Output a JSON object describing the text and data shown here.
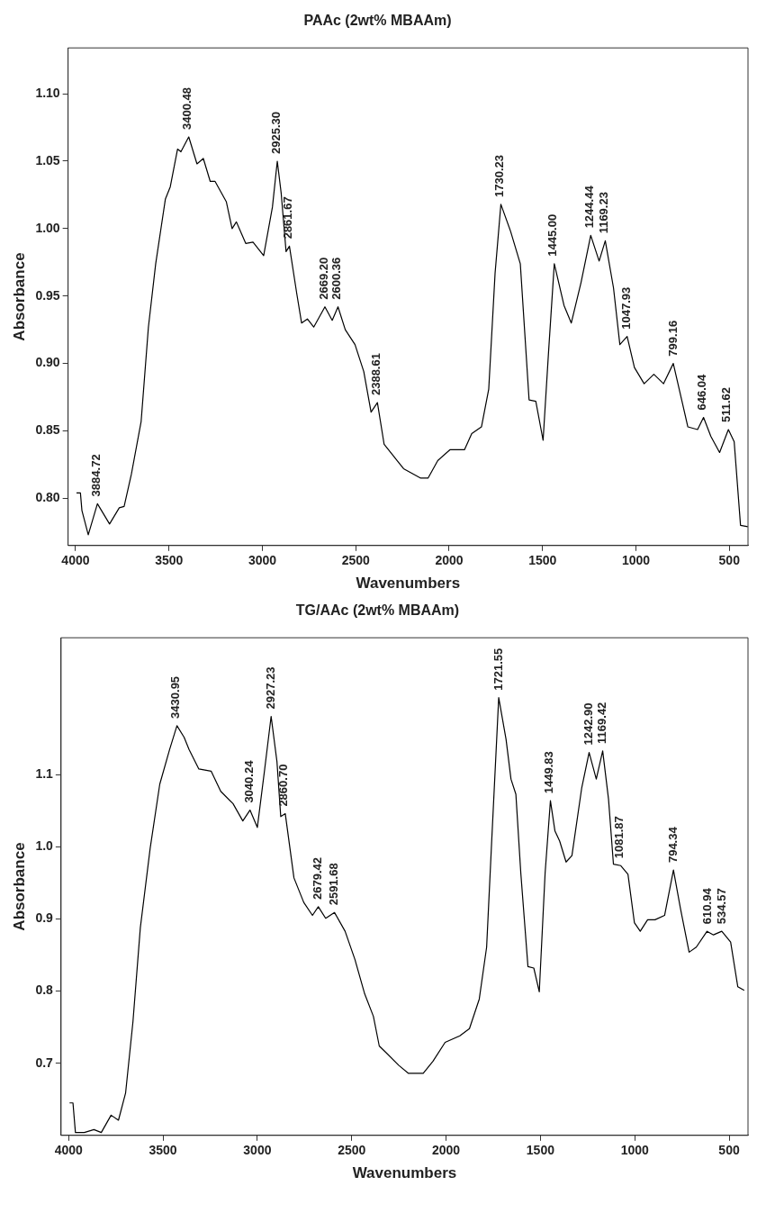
{
  "chart_data": [
    {
      "type": "line",
      "title": "PAAc (2wt% MBAAm)",
      "xlabel": "Wavenumbers",
      "ylabel": "Absorbance",
      "xlim": [
        4040,
        400
      ],
      "xticks": [
        4000,
        3500,
        3000,
        2500,
        2000,
        1500,
        1000,
        500
      ],
      "ylim": [
        0.765,
        1.134
      ],
      "yticks": [
        {
          "value": 0.8,
          "label": "0.80"
        },
        {
          "value": 0.85,
          "label": "0.85"
        },
        {
          "value": 0.9,
          "label": "0.90"
        },
        {
          "value": 0.95,
          "label": "0.95"
        },
        {
          "value": 1.0,
          "label": "1.00"
        },
        {
          "value": 1.05,
          "label": "1.05"
        },
        {
          "value": 1.1,
          "label": "1.10"
        }
      ],
      "grid": false,
      "marker": "none",
      "line_style": "solid",
      "series": [
        {
          "color": "#000000",
          "x": [
            3995,
            3974,
            3966,
            3932,
            3883,
            3818,
            3766,
            3740,
            3701,
            3649,
            3610,
            3571,
            3519,
            3493,
            3454,
            3436,
            3394,
            3350,
            3316,
            3279,
            3253,
            3193,
            3162,
            3139,
            3089,
            3050,
            2993,
            2946,
            2920,
            2899,
            2873,
            2855,
            2816,
            2790,
            2759,
            2725,
            2665,
            2626,
            2595,
            2556,
            2504,
            2457,
            2418,
            2384,
            2348,
            2296,
            2244,
            2152,
            2113,
            2061,
            1996,
            1918,
            1879,
            1827,
            1788,
            1754,
            1723,
            1671,
            1619,
            1572,
            1536,
            1497,
            1468,
            1437,
            1385,
            1346,
            1294,
            1242,
            1197,
            1164,
            1120,
            1086,
            1047,
            1008,
            956,
            904,
            852,
            800,
            755,
            722,
            670,
            638,
            599,
            552,
            505,
            474,
            440,
            401
          ],
          "values": [
            0.804,
            0.804,
            0.791,
            0.773,
            0.796,
            0.781,
            0.793,
            0.794,
            0.818,
            0.857,
            0.927,
            0.974,
            1.022,
            1.031,
            1.059,
            1.057,
            1.068,
            1.048,
            1.052,
            1.035,
            1.035,
            1.02,
            1.0,
            1.005,
            0.989,
            0.99,
            0.98,
            1.016,
            1.05,
            1.026,
            0.983,
            0.987,
            0.952,
            0.93,
            0.933,
            0.927,
            0.942,
            0.932,
            0.942,
            0.925,
            0.914,
            0.894,
            0.864,
            0.871,
            0.84,
            0.831,
            0.822,
            0.815,
            0.815,
            0.828,
            0.836,
            0.836,
            0.848,
            0.853,
            0.881,
            0.967,
            1.018,
            0.998,
            0.974,
            0.873,
            0.872,
            0.843,
            0.908,
            0.974,
            0.943,
            0.93,
            0.96,
            0.995,
            0.976,
            0.991,
            0.956,
            0.914,
            0.92,
            0.897,
            0.885,
            0.892,
            0.885,
            0.9,
            0.873,
            0.853,
            0.851,
            0.86,
            0.846,
            0.834,
            0.851,
            0.842,
            0.78,
            0.779
          ]
        }
      ],
      "annotations": [
        {
          "text": "3884.72",
          "x": 3884.72,
          "y": 0.796
        },
        {
          "text": "3400.48",
          "x": 3400.48,
          "y": 1.068
        },
        {
          "text": "2925.30",
          "x": 2925.3,
          "y": 1.05
        },
        {
          "text": "2861.67",
          "x": 2861.67,
          "y": 0.987
        },
        {
          "text": "2669.20",
          "x": 2669.2,
          "y": 0.942
        },
        {
          "text": "2600.36",
          "x": 2600.36,
          "y": 0.942
        },
        {
          "text": "2388.61",
          "x": 2388.61,
          "y": 0.871
        },
        {
          "text": "1730.23",
          "x": 1730.23,
          "y": 1.018
        },
        {
          "text": "1445.00",
          "x": 1445.0,
          "y": 0.974
        },
        {
          "text": "1244.44",
          "x": 1244.44,
          "y": 0.995
        },
        {
          "text": "1169.23",
          "x": 1169.23,
          "y": 0.991
        },
        {
          "text": "1047.93",
          "x": 1047.93,
          "y": 0.92
        },
        {
          "text": "799.16",
          "x": 799.16,
          "y": 0.9
        },
        {
          "text": "646.04",
          "x": 646.04,
          "y": 0.86
        },
        {
          "text": "511.62",
          "x": 511.62,
          "y": 0.851
        }
      ]
    },
    {
      "type": "line",
      "title": "TG/AAc (2wt% MBAAm)",
      "xlabel": "Wavenumbers",
      "ylabel": "Absorbance",
      "xlim": [
        4040,
        400
      ],
      "xticks": [
        4000,
        3500,
        3000,
        2500,
        2000,
        1500,
        1000,
        500
      ],
      "ylim": [
        0.6,
        1.29
      ],
      "yticks": [
        {
          "value": 0.7,
          "label": "0.7"
        },
        {
          "value": 0.8,
          "label": "0.8"
        },
        {
          "value": 0.9,
          "label": "0.9"
        },
        {
          "value": 1.0,
          "label": "1.0"
        },
        {
          "value": 1.1,
          "label": "1.1"
        }
      ],
      "grid": false,
      "marker": "none",
      "line_style": "solid",
      "series": [
        {
          "color": "#000000",
          "x": [
            3995,
            3977,
            3964,
            3917,
            3866,
            3827,
            3775,
            3736,
            3698,
            3659,
            3620,
            3568,
            3517,
            3465,
            3426,
            3388,
            3362,
            3310,
            3245,
            3194,
            3129,
            3077,
            3039,
            3000,
            2961,
            2927,
            2896,
            2876,
            2852,
            2806,
            2754,
            2708,
            2677,
            2638,
            2591,
            2535,
            2483,
            2431,
            2385,
            2354,
            2315,
            2250,
            2199,
            2121,
            2069,
            2005,
            1927,
            1876,
            1824,
            1785,
            1760,
            1721,
            1682,
            1656,
            1630,
            1604,
            1566,
            1535,
            1506,
            1475,
            1447,
            1423,
            1398,
            1364,
            1333,
            1281,
            1242,
            1204,
            1170,
            1139,
            1113,
            1074,
            1036,
            1002,
            971,
            932,
            893,
            842,
            795,
            759,
            712,
            674,
            617,
            583,
            539,
            492,
            454,
            420
          ],
          "values": [
            0.645,
            0.645,
            0.604,
            0.604,
            0.608,
            0.604,
            0.628,
            0.621,
            0.659,
            0.758,
            0.888,
            0.998,
            1.087,
            1.135,
            1.168,
            1.152,
            1.135,
            1.108,
            1.105,
            1.077,
            1.06,
            1.036,
            1.051,
            1.027,
            1.108,
            1.181,
            1.118,
            1.042,
            1.046,
            0.957,
            0.923,
            0.905,
            0.917,
            0.901,
            0.909,
            0.883,
            0.844,
            0.796,
            0.765,
            0.724,
            0.714,
            0.697,
            0.686,
            0.686,
            0.703,
            0.729,
            0.738,
            0.748,
            0.789,
            0.861,
            0.998,
            1.207,
            1.149,
            1.094,
            1.073,
            0.964,
            0.834,
            0.832,
            0.799,
            0.964,
            1.064,
            1.022,
            1.008,
            0.979,
            0.988,
            1.082,
            1.131,
            1.094,
            1.133,
            1.066,
            0.976,
            0.974,
            0.962,
            0.895,
            0.883,
            0.899,
            0.899,
            0.905,
            0.968,
            0.916,
            0.854,
            0.861,
            0.883,
            0.878,
            0.883,
            0.868,
            0.806,
            0.801
          ]
        }
      ],
      "annotations": [
        {
          "text": "3430.95",
          "x": 3430.95,
          "y": 1.168
        },
        {
          "text": "3040.24",
          "x": 3040.24,
          "y": 1.051
        },
        {
          "text": "2927.23",
          "x": 2927.23,
          "y": 1.181
        },
        {
          "text": "2860.70",
          "x": 2860.7,
          "y": 1.046
        },
        {
          "text": "2679.42",
          "x": 2679.42,
          "y": 0.917
        },
        {
          "text": "2591.68",
          "x": 2591.68,
          "y": 0.909
        },
        {
          "text": "1721.55",
          "x": 1721.55,
          "y": 1.207
        },
        {
          "text": "1449.83",
          "x": 1449.83,
          "y": 1.064
        },
        {
          "text": "1242.90",
          "x": 1242.9,
          "y": 1.131
        },
        {
          "text": "1169.42",
          "x": 1169.42,
          "y": 1.133
        },
        {
          "text": "1081.87",
          "x": 1081.87,
          "y": 0.974
        },
        {
          "text": "794.34",
          "x": 794.34,
          "y": 0.968
        },
        {
          "text": "610.94",
          "x": 610.94,
          "y": 0.883
        },
        {
          "text": "534.57",
          "x": 534.57,
          "y": 0.883
        }
      ]
    }
  ]
}
